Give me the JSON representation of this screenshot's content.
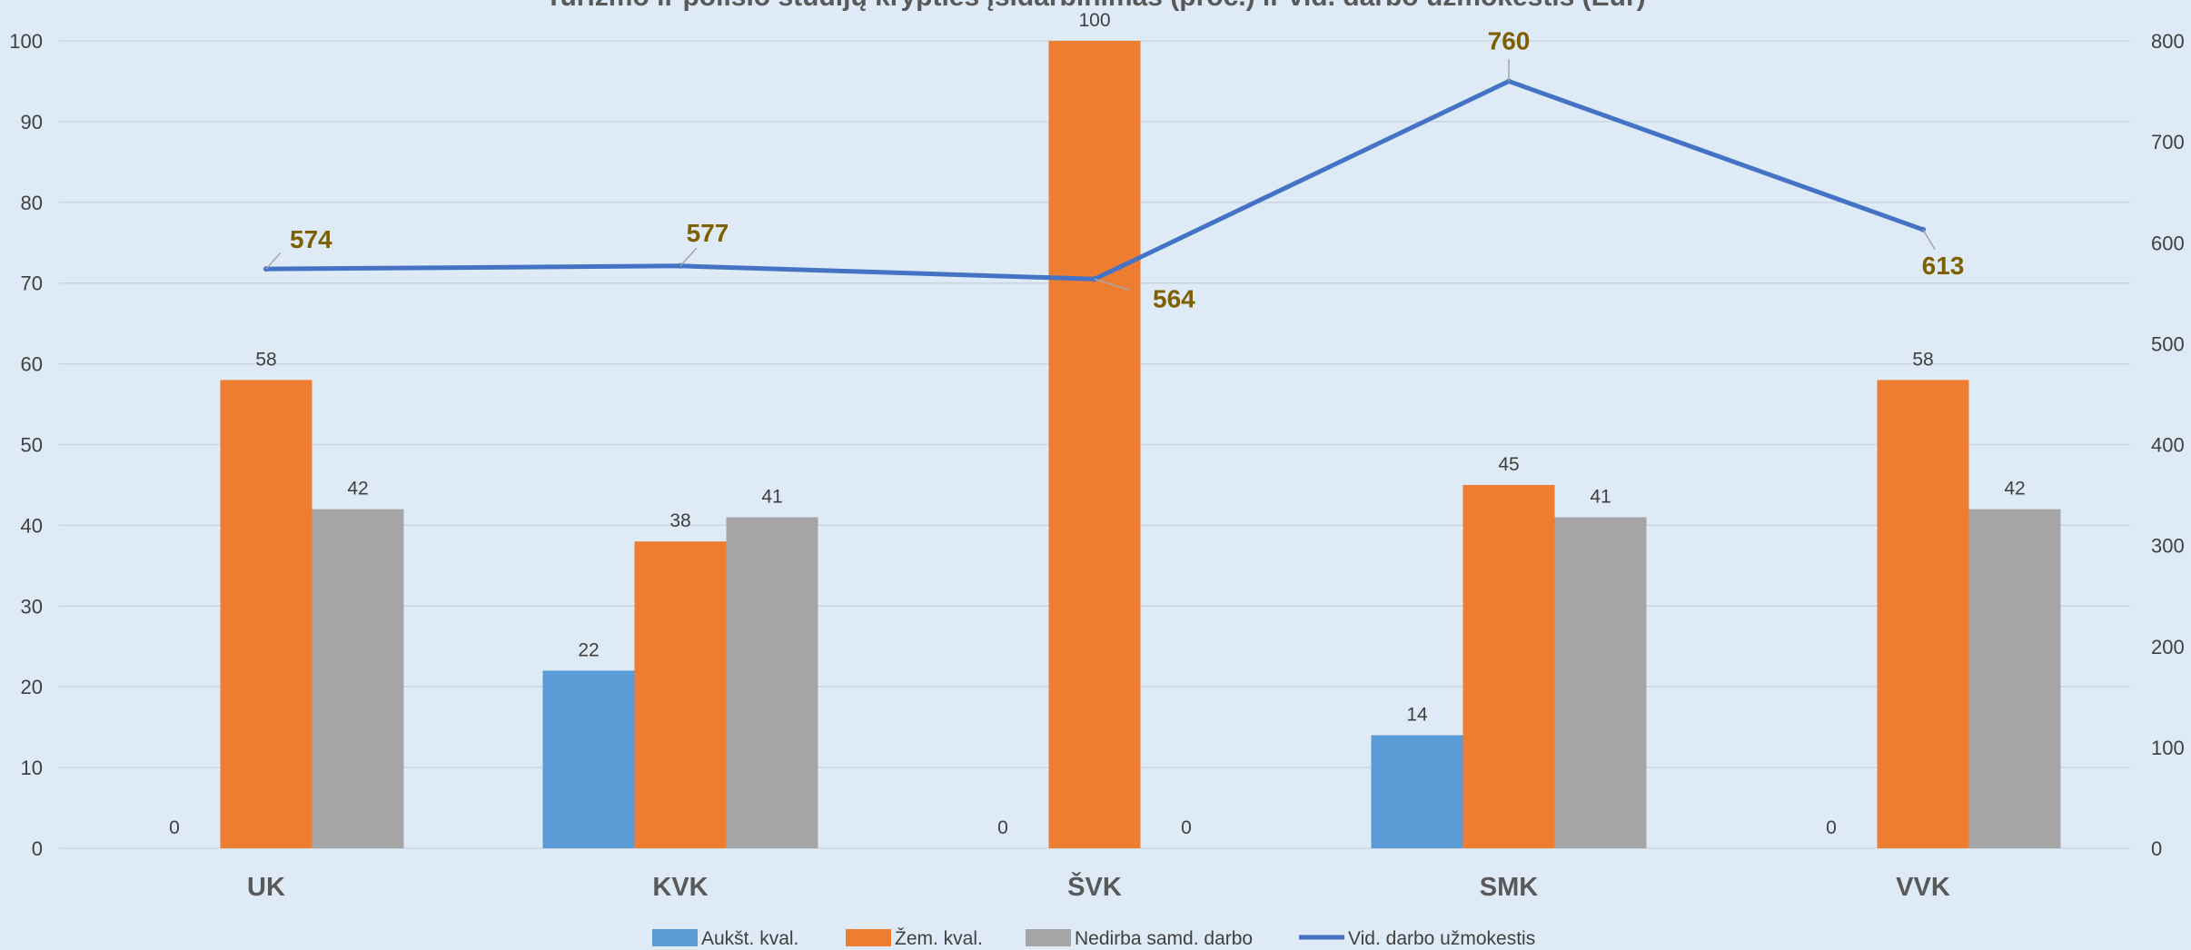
{
  "chart_data": {
    "type": "bar",
    "title": "Turizmo ir poilsio studijų krypties įsidarbinimas (proc.) ir vid. darbo užmokestis (Eur)",
    "categories": [
      "UK",
      "KVK",
      "ŠVK",
      "SMK",
      "VVK"
    ],
    "series": [
      {
        "name": "Aukšt. kval.",
        "type": "bar",
        "axis": "left",
        "color": "#5b9bd5",
        "values": [
          0,
          22,
          0,
          14,
          0
        ]
      },
      {
        "name": "Žem. kval.",
        "type": "bar",
        "axis": "left",
        "color": "#ed7d31",
        "values": [
          58,
          38,
          100,
          45,
          58
        ]
      },
      {
        "name": "Nedirba samd. darbo",
        "type": "bar",
        "axis": "left",
        "color": "#a5a5a5",
        "values": [
          42,
          41,
          0,
          41,
          42
        ]
      },
      {
        "name": "Vid. darbo užmokestis",
        "type": "line",
        "axis": "right",
        "color": "#4472c4",
        "values": [
          574,
          577,
          564,
          760,
          613
        ]
      }
    ],
    "ylim_left": [
      0,
      100
    ],
    "yticks_left": [
      0,
      10,
      20,
      30,
      40,
      50,
      60,
      70,
      80,
      90,
      100
    ],
    "ylim_right": [
      0,
      800
    ],
    "yticks_right": [
      0,
      100,
      200,
      300,
      400,
      500,
      600,
      700,
      800
    ],
    "xlabel": "",
    "ylabel": "",
    "grid": true,
    "legend_position": "bottom"
  }
}
